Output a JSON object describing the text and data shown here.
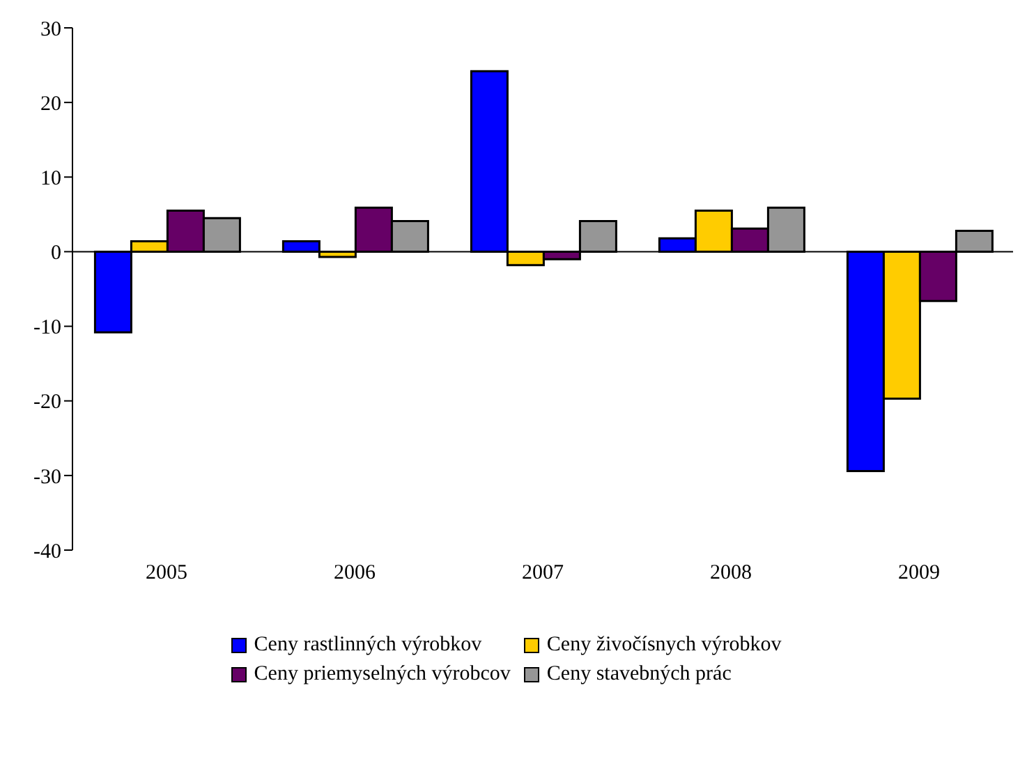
{
  "chart_data": {
    "type": "bar",
    "categories": [
      "2005",
      "2006",
      "2007",
      "2008",
      "2009"
    ],
    "series": [
      {
        "name": "Ceny rastlinných výrobkov",
        "color": "#0000ff",
        "values": [
          -10.8,
          1.4,
          24.2,
          1.8,
          -29.4
        ]
      },
      {
        "name": "Ceny živočísnych výrobkov",
        "color": "#ffcc00",
        "values": [
          1.4,
          -0.7,
          -1.8,
          5.5,
          -19.7
        ]
      },
      {
        "name": "Ceny priemyselných výrobcov",
        "color": "#660066",
        "values": [
          5.5,
          5.9,
          -1.0,
          3.1,
          -6.6
        ]
      },
      {
        "name": "Ceny stavebných prác",
        "color": "#969696",
        "values": [
          4.5,
          4.1,
          4.1,
          5.9,
          2.8
        ]
      }
    ],
    "ylim": [
      -40,
      30
    ],
    "yticks": [
      -40,
      -30,
      -20,
      -10,
      0,
      10,
      20,
      30
    ],
    "legend": "bottom"
  }
}
